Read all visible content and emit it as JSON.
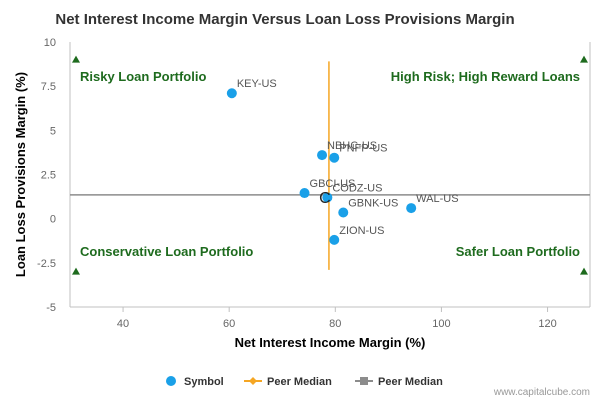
{
  "chart_data": {
    "type": "scatter",
    "title": "Net Interest Income Margin Versus Loan Loss Provisions Margin",
    "xlabel": "Net Interest Income Margin (%)",
    "ylabel": "Loan Loss Provisions Margin (%)",
    "xlim": [
      30,
      128
    ],
    "ylim": [
      -5,
      10
    ],
    "x_ticks": [
      40,
      60,
      80,
      100,
      120
    ],
    "y_ticks": [
      -5,
      -2.5,
      0,
      2.5,
      5,
      7.5,
      10
    ],
    "grid": false,
    "series": [
      {
        "name": "Symbol",
        "points": [
          {
            "label": "KEY-US",
            "x": 60.5,
            "y": 7.1
          },
          {
            "label": "NBHC-US",
            "x": 77.5,
            "y": 3.6
          },
          {
            "label": "PNFP-US",
            "x": 79.8,
            "y": 3.45
          },
          {
            "label": "GBCI-US",
            "x": 74.2,
            "y": 1.45
          },
          {
            "label": "CODZ-US",
            "x": 78.5,
            "y": 1.2
          },
          {
            "label": "GBNK-US",
            "x": 81.5,
            "y": 0.35
          },
          {
            "label": "WAL-US",
            "x": 94.3,
            "y": 0.6
          },
          {
            "label": "ZION-US",
            "x": 79.8,
            "y": -1.2
          }
        ]
      }
    ],
    "peer_median_x": 78.8,
    "peer_median_y": 1.35,
    "quadrant_labels": {
      "top_left": "Risky Loan Portfolio",
      "top_right": "High Risk; High Reward Loans",
      "bottom_left": "Conservative Loan Portfolio",
      "bottom_right": "Safer Loan Portfolio"
    },
    "median_marker_letter": "C",
    "legend": {
      "placement": "bottom-center",
      "items": [
        "Symbol",
        "Peer Median",
        "Peer Median"
      ]
    },
    "colors": {
      "points": "#1aa0e8",
      "x_median": "#f5a623",
      "y_median": "#8c8c8c",
      "quadrant_text": "#1e6b1e",
      "quadrant_marker": "#1e6b1e"
    }
  },
  "credit": "www.capitalcube.com"
}
